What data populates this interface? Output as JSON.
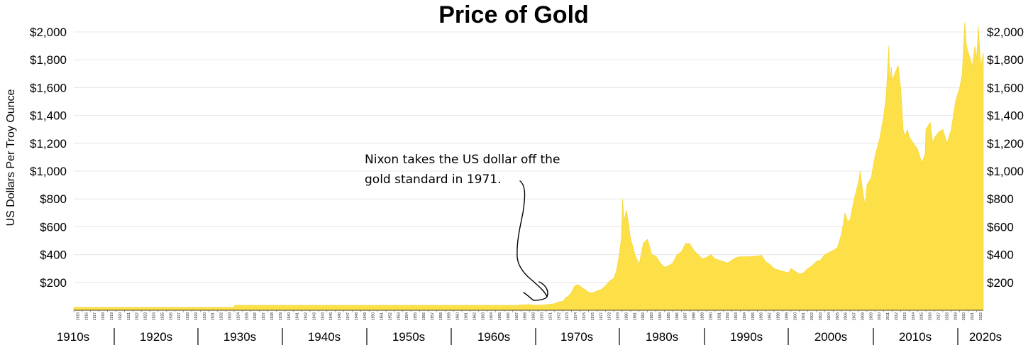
{
  "chart_data": {
    "type": "area",
    "title": "Price of Gold",
    "ylabel": "US Dollars Per Troy Ounce",
    "xlabel": "",
    "ylim": [
      0,
      2000
    ],
    "xlim": [
      1915,
      2022.8
    ],
    "y_ticks": [
      "$200",
      "$400",
      "$600",
      "$800",
      "$1,000",
      "$1,200",
      "$1,400",
      "$1,600",
      "$1,800",
      "$2,000"
    ],
    "y_tick_values": [
      200,
      400,
      600,
      800,
      1000,
      1200,
      1400,
      1600,
      1800,
      2000
    ],
    "year_ticks": [
      "1915",
      "1916",
      "1917",
      "1918",
      "1919",
      "1920",
      "1921",
      "1922",
      "1923",
      "1924",
      "1925",
      "1926",
      "1927",
      "1928",
      "1929",
      "1930",
      "1931",
      "1932",
      "1933",
      "1934",
      "1935",
      "1936",
      "1937",
      "1938",
      "1939",
      "1940",
      "1941",
      "1942",
      "1943",
      "1944",
      "1945",
      "1946",
      "1947",
      "1948",
      "1949",
      "1950",
      "1951",
      "1952",
      "1953",
      "1954",
      "1955",
      "1956",
      "1957",
      "1958",
      "1959",
      "1960",
      "1961",
      "1962",
      "1963",
      "1964",
      "1965",
      "1966",
      "1967",
      "1968",
      "1969",
      "1970",
      "1971",
      "1972",
      "1973",
      "1974",
      "1975",
      "1976",
      "1977",
      "1978",
      "1979",
      "1980",
      "1981",
      "1982",
      "1983",
      "1984",
      "1985",
      "1986",
      "1987",
      "1988",
      "1989",
      "1990",
      "1991",
      "1992",
      "1993",
      "1994",
      "1995",
      "1996",
      "1997",
      "1998",
      "1999",
      "2000",
      "2001",
      "2002",
      "2003",
      "2004",
      "2005",
      "2006",
      "2007",
      "2008",
      "2009",
      "2010",
      "2011",
      "2012",
      "2013",
      "2014",
      "2015",
      "2016",
      "2017",
      "2018",
      "2019",
      "2020",
      "2021",
      "2022"
    ],
    "decades": [
      "1910s",
      "1920s",
      "1930s",
      "1940s",
      "1950s",
      "1960s",
      "1970s",
      "1980s",
      "1990s",
      "2000s",
      "2010s",
      "2020s"
    ],
    "annotation": {
      "line1": "Nixon takes the US dollar off the",
      "line2": "gold standard in 1971."
    },
    "colors": {
      "fill": "#fde047",
      "grid": "#e6e6e6",
      "text": "#000000"
    },
    "grid": true,
    "series": [
      {
        "x": [
          1915,
          1933.9,
          1934.1,
          1967.5,
          1968,
          1969,
          1969.5,
          1970,
          1970.7,
          1971,
          1971.5,
          1972,
          1972.5,
          1973,
          1973.3,
          1973.6,
          1974,
          1974.3,
          1974.7,
          1975,
          1975.3,
          1975.7,
          1976,
          1976.5,
          1977,
          1977.5,
          1978,
          1978.5,
          1979,
          1979.3,
          1979.6,
          1979.9,
          1980.05,
          1980.2,
          1980.5,
          1980.8,
          1981,
          1981.3,
          1981.5,
          1982,
          1982.5,
          1983,
          1983.5,
          1984,
          1984.5,
          1985,
          1985.5,
          1986,
          1986.5,
          1987,
          1987.5,
          1988,
          1988.5,
          1989,
          1989.5,
          1990,
          1990.5,
          1991,
          1991.5,
          1992,
          1992.5,
          1993,
          1993.5,
          1994,
          1995,
          1996,
          1996.5,
          1997,
          1997.5,
          1998,
          1999,
          1999.7,
          2000,
          2000.5,
          2001,
          2001.5,
          2002,
          2002.5,
          2003,
          2003.5,
          2004,
          2005,
          2005.5,
          2006,
          2006.4,
          2006.7,
          2007,
          2007.5,
          2008,
          2008.2,
          2008.5,
          2008.8,
          2009,
          2009.5,
          2010,
          2010.5,
          2011,
          2011.3,
          2011.6,
          2011.7,
          2011.9,
          2012,
          2012.3,
          2012.7,
          2013,
          2013.3,
          2013.5,
          2013.8,
          2014,
          2014.5,
          2015,
          2015.5,
          2015.9,
          2016,
          2016.5,
          2016.8,
          2017,
          2017.5,
          2018,
          2018.5,
          2019,
          2019.5,
          2020,
          2020.3,
          2020.6,
          2020.8,
          2021,
          2021.3,
          2021.5,
          2021.8,
          2022,
          2022.2,
          2022.5,
          2022.8
        ],
        "values": [
          20.67,
          20.67,
          35,
          35,
          39,
          41,
          37,
          36,
          38,
          40,
          44,
          48,
          60,
          65,
          90,
          100,
          130,
          170,
          185,
          175,
          160,
          145,
          130,
          125,
          140,
          150,
          175,
          210,
          230,
          280,
          380,
          520,
          800,
          640,
          720,
          600,
          510,
          450,
          400,
          330,
          480,
          510,
          400,
          390,
          340,
          310,
          320,
          340,
          400,
          420,
          480,
          480,
          430,
          400,
          370,
          380,
          400,
          370,
          360,
          350,
          340,
          360,
          380,
          385,
          385,
          390,
          395,
          350,
          330,
          300,
          280,
          270,
          300,
          280,
          260,
          270,
          300,
          320,
          350,
          360,
          400,
          430,
          450,
          550,
          700,
          640,
          650,
          800,
          920,
          1000,
          860,
          750,
          900,
          950,
          1120,
          1230,
          1400,
          1550,
          1900,
          1650,
          1750,
          1650,
          1700,
          1760,
          1600,
          1300,
          1250,
          1300,
          1250,
          1200,
          1160,
          1060,
          1120,
          1300,
          1350,
          1200,
          1240,
          1280,
          1300,
          1200,
          1300,
          1500,
          1600,
          1700,
          2070,
          1900,
          1850,
          1800,
          1750,
          1900,
          1800,
          2040,
          1750,
          1850
        ]
      }
    ]
  }
}
